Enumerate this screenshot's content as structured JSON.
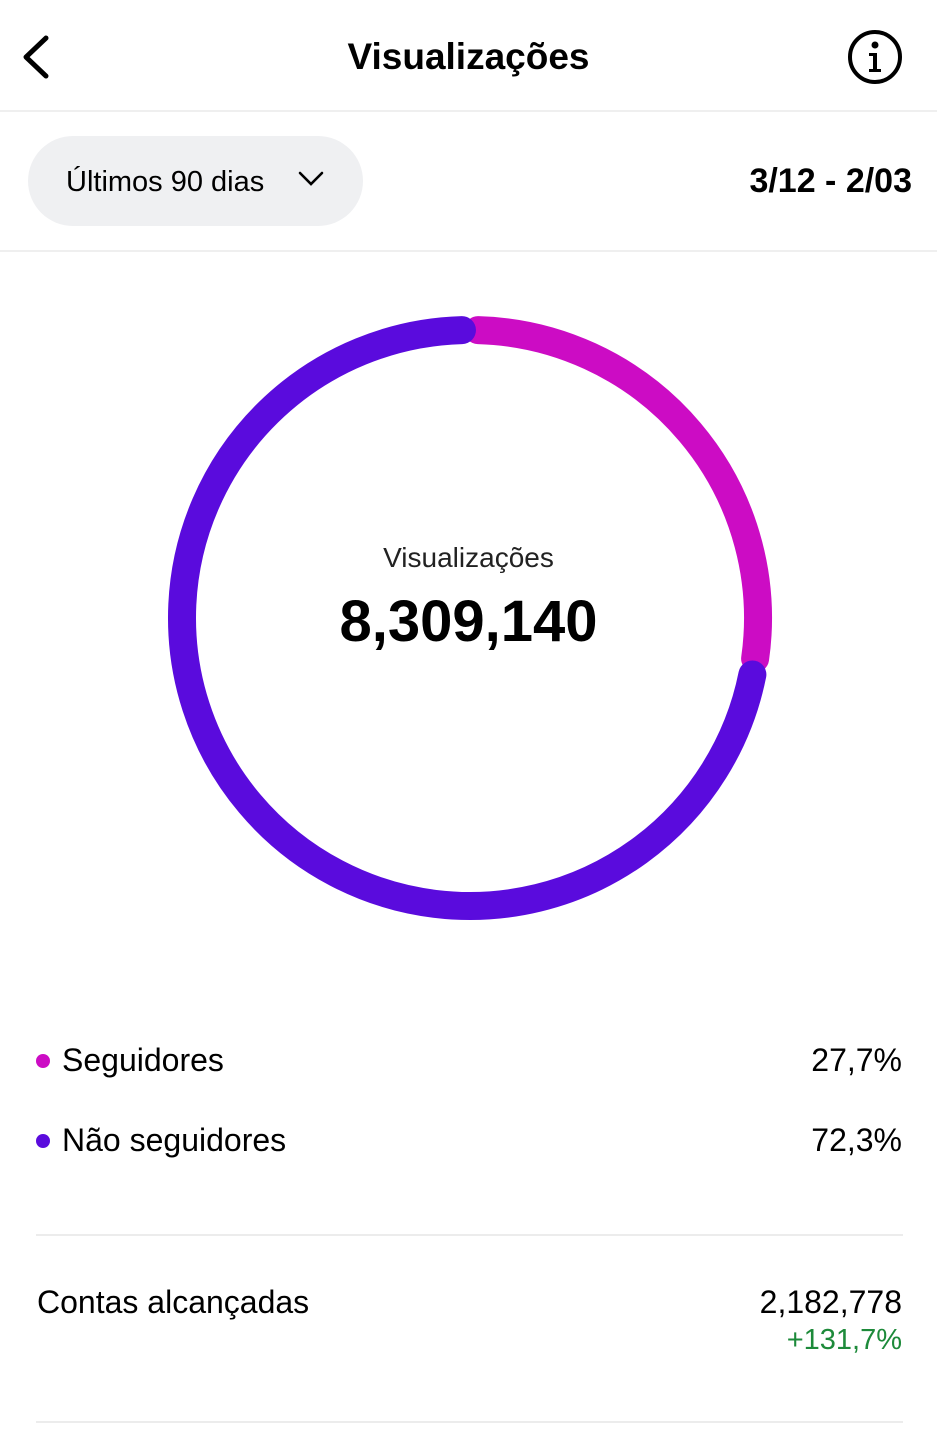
{
  "header": {
    "title": "Visualizações",
    "back_icon": "chevron-left-icon",
    "info_icon": "info-icon"
  },
  "filter": {
    "selected": "Últimos 90 dias",
    "date_range": "3/12 - 2/03"
  },
  "chart_data": {
    "type": "pie",
    "variant": "donut",
    "center_label": "Visualizações",
    "center_value": "8,309,140",
    "categories": [
      "Seguidores",
      "Não seguidores"
    ],
    "values": [
      27.7,
      72.3
    ],
    "colors": [
      "#CC0CC4",
      "#5A0BDD"
    ]
  },
  "legend": [
    {
      "label": "Seguidores",
      "value": "27,7%",
      "color": "#CC0CC4"
    },
    {
      "label": "Não seguidores",
      "value": "72,3%",
      "color": "#5A0BDD"
    }
  ],
  "metrics": {
    "label": "Contas alcançadas",
    "value": "2,182,778",
    "change": "+131,7%",
    "change_color": "#1D8A3A"
  }
}
